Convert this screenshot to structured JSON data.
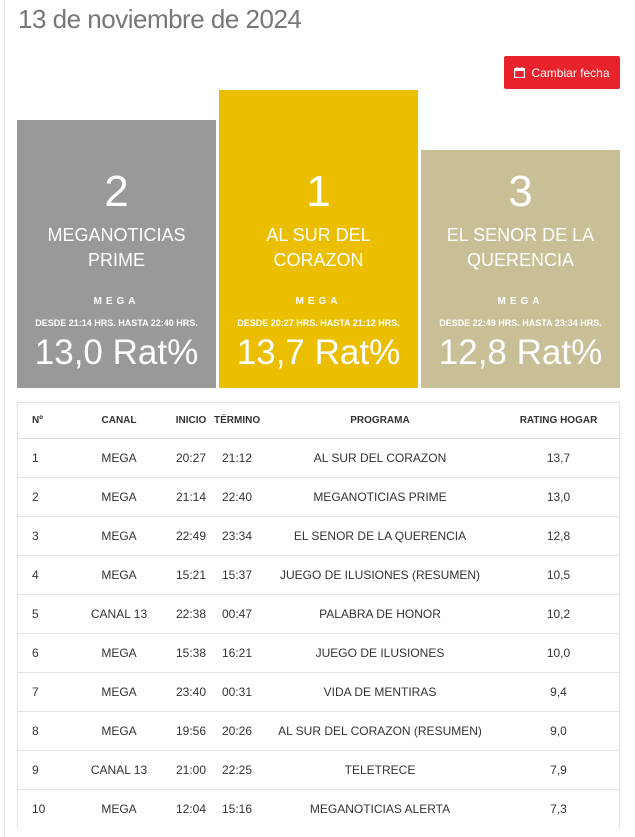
{
  "header": {
    "title": "13 de noviembre de 2024",
    "change_date_label": "Cambiar fecha"
  },
  "colors": {
    "first": "#ebbf00",
    "second": "#999999",
    "third": "#c9bf96",
    "button": "#e8232c"
  },
  "podium": [
    {
      "rank": "2",
      "program": "MEGANOTICIAS PRIME",
      "channel": "MEGA",
      "times": "DESDE 21:14 HRS. HASTA 22:40 HRS.",
      "rating": "13,0 Rat%"
    },
    {
      "rank": "1",
      "program": "AL SUR DEL CORAZON",
      "channel": "MEGA",
      "times": "DESDE 20:27 HRS. HASTA 21:12 HRS.",
      "rating": "13,7 Rat%"
    },
    {
      "rank": "3",
      "program": "EL SENOR DE LA QUERENCIA",
      "channel": "MEGA",
      "times": "DESDE 22:49 HRS. HASTA 23:34 HRS.",
      "rating": "12,8 Rat%"
    }
  ],
  "table": {
    "headers": {
      "num": "Nº",
      "canal": "CANAL",
      "inicio": "INICIO",
      "termino": "TÉRMINO",
      "programa": "PROGRAMA",
      "rating": "RATING HOGAR"
    },
    "rows": [
      {
        "num": "1",
        "canal": "MEGA",
        "inicio": "20:27",
        "termino": "21:12",
        "programa": "AL SUR DEL CORAZON",
        "rating": "13,7"
      },
      {
        "num": "2",
        "canal": "MEGA",
        "inicio": "21:14",
        "termino": "22:40",
        "programa": "MEGANOTICIAS PRIME",
        "rating": "13,0"
      },
      {
        "num": "3",
        "canal": "MEGA",
        "inicio": "22:49",
        "termino": "23:34",
        "programa": "EL SENOR DE LA QUERENCIA",
        "rating": "12,8"
      },
      {
        "num": "4",
        "canal": "MEGA",
        "inicio": "15:21",
        "termino": "15:37",
        "programa": "JUEGO DE ILUSIONES (RESUMEN)",
        "rating": "10,5"
      },
      {
        "num": "5",
        "canal": "CANAL 13",
        "inicio": "22:38",
        "termino": "00:47",
        "programa": "PALABRA DE HONOR",
        "rating": "10,2"
      },
      {
        "num": "6",
        "canal": "MEGA",
        "inicio": "15:38",
        "termino": "16:21",
        "programa": "JUEGO DE ILUSIONES",
        "rating": "10,0"
      },
      {
        "num": "7",
        "canal": "MEGA",
        "inicio": "23:40",
        "termino": "00:31",
        "programa": "VIDA DE MENTIRAS",
        "rating": "9,4"
      },
      {
        "num": "8",
        "canal": "MEGA",
        "inicio": "19:56",
        "termino": "20:26",
        "programa": "AL SUR DEL CORAZON (RESUMEN)",
        "rating": "9,0"
      },
      {
        "num": "9",
        "canal": "CANAL 13",
        "inicio": "21:00",
        "termino": "22:25",
        "programa": "TELETRECE",
        "rating": "7,9"
      },
      {
        "num": "10",
        "canal": "MEGA",
        "inicio": "12:04",
        "termino": "15:16",
        "programa": "MEGANOTICIAS ALERTA",
        "rating": "7,3"
      }
    ]
  }
}
